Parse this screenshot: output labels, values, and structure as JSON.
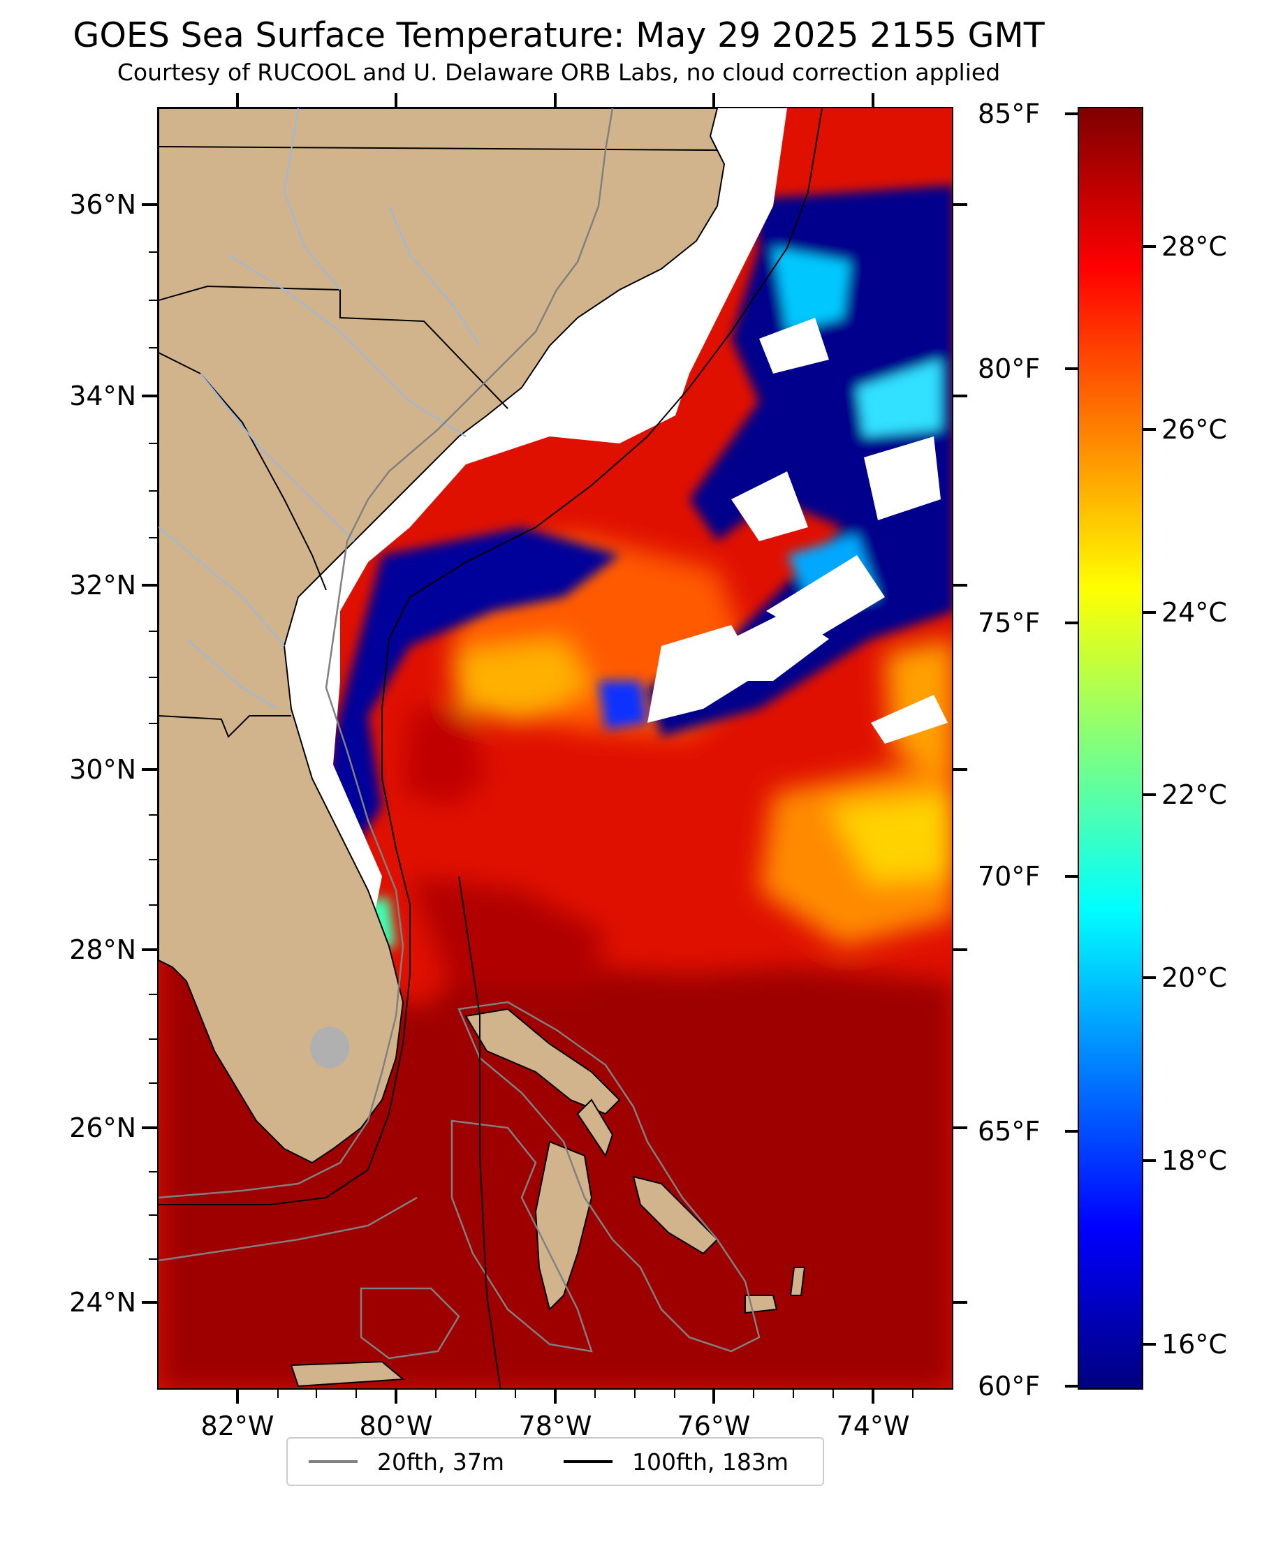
{
  "title": "GOES Sea Surface Temperature: May 29 2025 2155 GMT",
  "subtitle": "Courtesy of RUCOOL and U. Delaware ORB Labs, no cloud correction applied",
  "map": {
    "lat_labels": [
      "36°N",
      "34°N",
      "32°N",
      "30°N",
      "28°N",
      "26°N",
      "24°N"
    ],
    "lon_labels": [
      "82°W",
      "80°W",
      "78°W",
      "76°W",
      "74°W"
    ],
    "land_color": "#d2b48c",
    "no_data_color": "#ffffff",
    "inland_water_color": "#b0b0b0",
    "river_color": "#9ab8e0"
  },
  "colorbar": {
    "fahrenheit_labels": [
      "85°F",
      "80°F",
      "75°F",
      "70°F",
      "65°F",
      "60°F"
    ],
    "celsius_labels": [
      "28°C",
      "26°C",
      "24°C",
      "22°C",
      "20°C",
      "18°C",
      "16°C"
    ],
    "colormap": "jet",
    "range_f": [
      60,
      85
    ]
  },
  "legend": {
    "items": [
      {
        "label": "20fth, 37m",
        "color": "#808080"
      },
      {
        "label": "100fth, 183m",
        "color": "#000000"
      }
    ]
  }
}
